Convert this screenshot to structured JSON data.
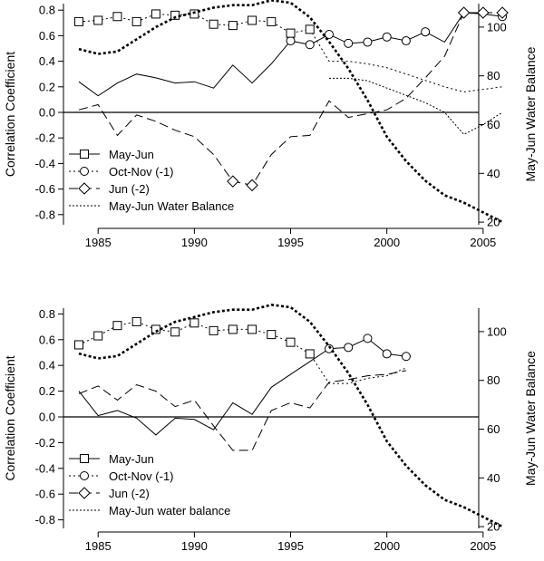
{
  "chart_data": [
    {
      "type": "line",
      "ylabel": "Correlation Coefficient",
      "ylabel_right": "May-Jun Water Balance",
      "xlim": [
        1983.3,
        2006.7
      ],
      "ylim": [
        -0.85,
        0.85
      ],
      "ylim_right": [
        15,
        115
      ],
      "x_ticks": [
        1985,
        1990,
        1995,
        2000,
        2005
      ],
      "y_ticks": [
        0.8,
        0.6,
        0.4,
        0.2,
        0.0,
        -0.2,
        -0.4,
        -0.6,
        -0.8
      ],
      "y_tick_labels": [
        "0.8",
        "0.6",
        "0.4",
        "0.2",
        "0.0",
        "-0.2",
        "-0.4",
        "-0.6",
        "-0.8"
      ],
      "y_right_ticks": [
        20,
        40,
        60,
        80,
        100
      ],
      "legend_position": "bottom-left",
      "series": [
        {
          "name": "May-Jun",
          "style": "solid",
          "x": [
            1984,
            1985,
            1986,
            1987,
            1988,
            1989,
            1990,
            1991,
            1992,
            1993,
            1994,
            1995,
            1996,
            1997,
            1998,
            1999,
            2000,
            2001,
            2002,
            2003,
            2004,
            2005,
            2006
          ],
          "values": [
            0.24,
            0.13,
            0.23,
            0.3,
            0.27,
            0.23,
            0.24,
            0.19,
            0.37,
            0.23,
            0.38,
            0.56,
            0.53,
            0.61,
            0.54,
            0.55,
            0.59,
            0.56,
            0.63,
            0.55,
            0.78,
            0.77,
            0.75
          ],
          "open_markers_at": [
            1995,
            1996,
            1997,
            1998,
            1999,
            2000,
            2001,
            2002,
            2006
          ]
        },
        {
          "name": "Oct-Nov (-1)",
          "style": "dotted",
          "x": [
            1984,
            1985,
            1986,
            1987,
            1988,
            1989,
            1990,
            1991,
            1992,
            1993,
            1994,
            1995,
            1996,
            1997,
            1998,
            1999,
            2000,
            2001,
            2002,
            2003,
            2004,
            2005,
            2006
          ],
          "values": [
            0.71,
            0.72,
            0.75,
            0.71,
            0.77,
            0.76,
            0.77,
            0.69,
            0.68,
            0.72,
            0.71,
            0.62,
            0.65,
            0.4,
            0.4,
            0.38,
            0.35,
            0.3,
            0.25,
            0.2,
            0.16,
            0.18,
            0.2
          ],
          "square_markers_at": [
            1984,
            1985,
            1986,
            1987,
            1988,
            1989,
            1990,
            1991,
            1992,
            1993,
            1994,
            1995,
            1996
          ]
        },
        {
          "name": "Jun (-2)",
          "style": "dashed",
          "x": [
            1984,
            1985,
            1986,
            1987,
            1988,
            1989,
            1990,
            1991,
            1992,
            1993,
            1994,
            1995,
            1996,
            1997,
            1998,
            1999,
            2000,
            2001,
            2002,
            2003,
            2004,
            2005,
            2006
          ],
          "values": [
            0.02,
            0.06,
            -0.18,
            -0.02,
            -0.07,
            -0.14,
            -0.19,
            -0.33,
            -0.54,
            -0.57,
            -0.33,
            -0.19,
            -0.18,
            0.09,
            -0.04,
            -0.01,
            0.02,
            0.11,
            0.27,
            0.44,
            0.78,
            0.78,
            0.78
          ],
          "diamond_markers_at": [
            1992,
            1993,
            2004,
            2005,
            2006
          ]
        },
        {
          "name": "May-Jun Water Balance",
          "style": "dotted-thin",
          "axis": "right",
          "x": [
            1997,
            1998,
            1999,
            2000,
            2001,
            2002,
            2003,
            2004,
            2005,
            2006
          ],
          "values": [
            79,
            79,
            78,
            75,
            72,
            69,
            65,
            56,
            60,
            65
          ]
        },
        {
          "name": "",
          "style": "heavy-dotted",
          "axis": "right",
          "x": [
            1984,
            1985,
            1986,
            1987,
            1988,
            1989,
            1990,
            1991,
            1992,
            1993,
            1994,
            1995,
            1996,
            1997,
            1998,
            1999,
            2000,
            2001,
            2002,
            2003,
            2004,
            2005,
            2006
          ],
          "values": [
            91,
            89,
            90,
            95,
            100,
            104,
            106,
            108,
            109,
            109,
            111,
            110,
            104,
            94,
            83,
            70,
            55,
            45,
            37,
            31,
            28,
            24,
            20
          ]
        }
      ]
    },
    {
      "type": "line",
      "ylabel": "Correlation Coefficient",
      "ylabel_right": "May-Jun Water Balance",
      "xlim": [
        1983.3,
        2006.7
      ],
      "ylim": [
        -0.85,
        0.85
      ],
      "ylim_right": [
        15,
        115
      ],
      "x_ticks": [
        1985,
        1990,
        1995,
        2000,
        2005
      ],
      "y_ticks": [
        0.8,
        0.6,
        0.4,
        0.2,
        0.0,
        -0.2,
        -0.4,
        -0.6,
        -0.8
      ],
      "y_tick_labels": [
        "0.8",
        "0.6",
        "0.4",
        "0.2",
        "0.0",
        "-0.2",
        "-0.4",
        "-0.6",
        "-0.8"
      ],
      "y_right_ticks": [
        20,
        40,
        60,
        80,
        100
      ],
      "legend_position": "bottom-left",
      "series": [
        {
          "name": "May-Jun",
          "style": "solid",
          "x": [
            1984,
            1985,
            1986,
            1987,
            1988,
            1989,
            1990,
            1991,
            1992,
            1993,
            1994,
            1995,
            1996,
            1997,
            1998,
            1999,
            2000,
            2001
          ],
          "values": [
            0.2,
            0.01,
            0.05,
            -0.01,
            -0.14,
            -0.01,
            -0.02,
            -0.1,
            0.11,
            0.02,
            0.23,
            0.33,
            0.43,
            0.53,
            0.54,
            0.61,
            0.49,
            0.47
          ],
          "open_markers_at": [
            1997,
            1998,
            1999,
            2000,
            2001
          ]
        },
        {
          "name": "Oct-Nov (-1)",
          "style": "dotted",
          "x": [
            1984,
            1985,
            1986,
            1987,
            1988,
            1989,
            1990,
            1991,
            1992,
            1993,
            1994,
            1995,
            1996,
            1997,
            1998,
            1999,
            2000,
            2001
          ],
          "values": [
            0.56,
            0.63,
            0.71,
            0.74,
            0.68,
            0.66,
            0.73,
            0.67,
            0.68,
            0.68,
            0.64,
            0.58,
            0.49,
            0.26,
            0.26,
            0.3,
            0.32,
            0.38
          ],
          "square_markers_at": [
            1984,
            1985,
            1986,
            1987,
            1988,
            1989,
            1990,
            1991,
            1992,
            1993,
            1994,
            1995,
            1996
          ]
        },
        {
          "name": "Jun (-2)",
          "style": "dashed",
          "x": [
            1984,
            1985,
            1986,
            1987,
            1988,
            1989,
            1990,
            1991,
            1992,
            1993,
            1994,
            1995,
            1996,
            1997,
            1998,
            1999,
            2000,
            2001
          ],
          "values": [
            0.18,
            0.24,
            0.13,
            0.25,
            0.2,
            0.08,
            0.13,
            -0.07,
            -0.26,
            -0.26,
            0.05,
            0.11,
            0.07,
            0.27,
            0.29,
            0.32,
            0.33,
            0.36
          ]
        },
        {
          "name": "May-Jun water balance",
          "style": "dotted-thin",
          "axis": "right",
          "x": [],
          "values": []
        },
        {
          "name": "",
          "style": "heavy-dotted",
          "axis": "right",
          "x": [
            1984,
            1985,
            1986,
            1987,
            1988,
            1989,
            1990,
            1991,
            1992,
            1993,
            1994,
            1995,
            1996,
            1997,
            1998,
            1999,
            2000,
            2001,
            2002,
            2003,
            2004,
            2005,
            2006
          ],
          "values": [
            91,
            89,
            90,
            95,
            100,
            104,
            106,
            108,
            109,
            109,
            111,
            110,
            104,
            94,
            83,
            70,
            55,
            45,
            37,
            31,
            28,
            24,
            20
          ]
        }
      ]
    }
  ]
}
